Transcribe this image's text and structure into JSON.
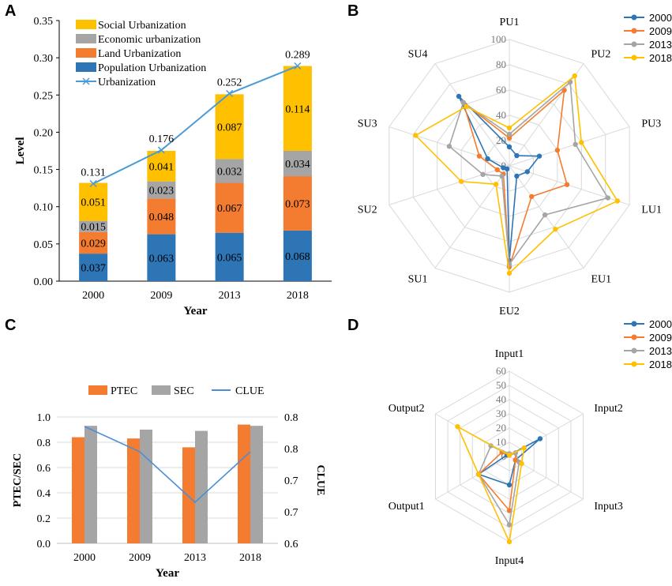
{
  "panels": {
    "A": "A",
    "B": "B",
    "C": "C",
    "D": "D"
  },
  "colors": {
    "blue": "#2e75b6",
    "orange": "#f47c30",
    "gray": "#a5a5a5",
    "yellow": "#ffc000",
    "line": "#4a9bd6",
    "grid": "#d9d9d9"
  },
  "chart_data": [
    {
      "id": "A",
      "type": "bar",
      "stacked": true,
      "categories": [
        "2000",
        "2009",
        "2013",
        "2018"
      ],
      "series": [
        {
          "name": "Population Urbanization",
          "color": "#2e75b6",
          "values": [
            0.037,
            0.063,
            0.065,
            0.068
          ],
          "labels": [
            "0.037",
            "0.063",
            "0.065",
            "0.068"
          ]
        },
        {
          "name": "Land Urbanization",
          "color": "#f47c30",
          "values": [
            0.029,
            0.048,
            0.067,
            0.073
          ],
          "labels": [
            "0.029",
            "0.048",
            "0.067",
            "0.073"
          ]
        },
        {
          "name": "Economic urbanization",
          "color": "#a5a5a5",
          "values": [
            0.015,
            0.023,
            0.032,
            0.034
          ],
          "labels": [
            "0.015",
            "0.023",
            "0.032",
            "0.034"
          ]
        },
        {
          "name": "Social Urbanization",
          "color": "#ffc000",
          "values": [
            0.051,
            0.041,
            0.087,
            0.114
          ],
          "labels": [
            "0.051",
            "0.041",
            "0.087",
            "0.114"
          ]
        }
      ],
      "line": {
        "name": "Urbanization",
        "values": [
          0.131,
          0.176,
          0.252,
          0.289
        ],
        "labels": [
          "0.131",
          "0.176",
          "0.252",
          "0.289"
        ]
      },
      "legend_order": [
        "Social Urbanization",
        "Economic urbanization",
        "Land Urbanization",
        "Population Urbanization",
        "Urbanization"
      ],
      "xlabel": "Year",
      "ylabel": "Level",
      "ylim": [
        0,
        0.35
      ],
      "yticks": [
        "0.00",
        "0.05",
        "0.10",
        "0.15",
        "0.20",
        "0.25",
        "0.30",
        "0.35"
      ]
    },
    {
      "id": "B",
      "type": "radar",
      "axes": [
        "PU1",
        "PU2",
        "PU3",
        "LU1",
        "EU1",
        "EU2",
        "SU1",
        "SU2",
        "SU3",
        "SU4"
      ],
      "rlim": [
        0,
        100
      ],
      "rticks": [
        "0",
        "20",
        "40",
        "60",
        "80",
        "100"
      ],
      "series": [
        {
          "name": "2000",
          "color": "#2e75b6",
          "values": [
            15,
            10,
            25,
            15,
            10,
            75,
            3,
            5,
            18,
            68
          ]
        },
        {
          "name": "2009",
          "color": "#f47c30",
          "values": [
            22,
            74,
            40,
            48,
            30,
            80,
            8,
            10,
            25,
            62
          ]
        },
        {
          "name": "2013",
          "color": "#a5a5a5",
          "values": [
            25,
            82,
            55,
            82,
            48,
            78,
            10,
            22,
            50,
            62
          ]
        },
        {
          "name": "2018",
          "color": "#ffc000",
          "values": [
            30,
            88,
            60,
            90,
            62,
            85,
            18,
            40,
            78,
            58
          ]
        }
      ]
    },
    {
      "id": "C",
      "type": "bar",
      "categories": [
        "2000",
        "2009",
        "2013",
        "2018"
      ],
      "series": [
        {
          "name": "PTEC",
          "color": "#f47c30",
          "values": [
            0.84,
            0.83,
            0.76,
            0.94
          ]
        },
        {
          "name": "SEC",
          "color": "#a5a5a5",
          "values": [
            0.93,
            0.9,
            0.89,
            0.93
          ]
        }
      ],
      "line": {
        "name": "CLUE",
        "color": "#4a8ed6",
        "values": [
          0.785,
          0.745,
          0.665,
          0.745
        ]
      },
      "xlabel": "Year",
      "ylabel": "PTEC/SEC",
      "y2label": "CLUE",
      "ylim": [
        0,
        1.0
      ],
      "yticks": [
        "0.0",
        "0.2",
        "0.4",
        "0.6",
        "0.8",
        "1.0"
      ],
      "y2lim": [
        0.6,
        0.8
      ],
      "y2ticks": [
        "0.6",
        "0.7",
        "0.7",
        "0.8",
        "0.8"
      ]
    },
    {
      "id": "D",
      "type": "radar",
      "axes": [
        "Input1",
        "Input2",
        "Input3",
        "Input4",
        "Output1",
        "Output2"
      ],
      "rlim": [
        0,
        60
      ],
      "rticks": [
        "0",
        "10",
        "20",
        "30",
        "40",
        "50",
        "60"
      ],
      "series": [
        {
          "name": "2000",
          "color": "#2e75b6",
          "values": [
            1,
            25,
            5,
            20,
            25,
            2
          ]
        },
        {
          "name": "2009",
          "color": "#f47c30",
          "values": [
            1,
            5,
            5,
            38,
            25,
            6
          ]
        },
        {
          "name": "2013",
          "color": "#a5a5a5",
          "values": [
            2,
            5,
            8,
            48,
            25,
            15
          ]
        },
        {
          "name": "2018",
          "color": "#ffc000",
          "values": [
            1,
            12,
            10,
            60,
            25,
            42
          ]
        }
      ]
    }
  ]
}
